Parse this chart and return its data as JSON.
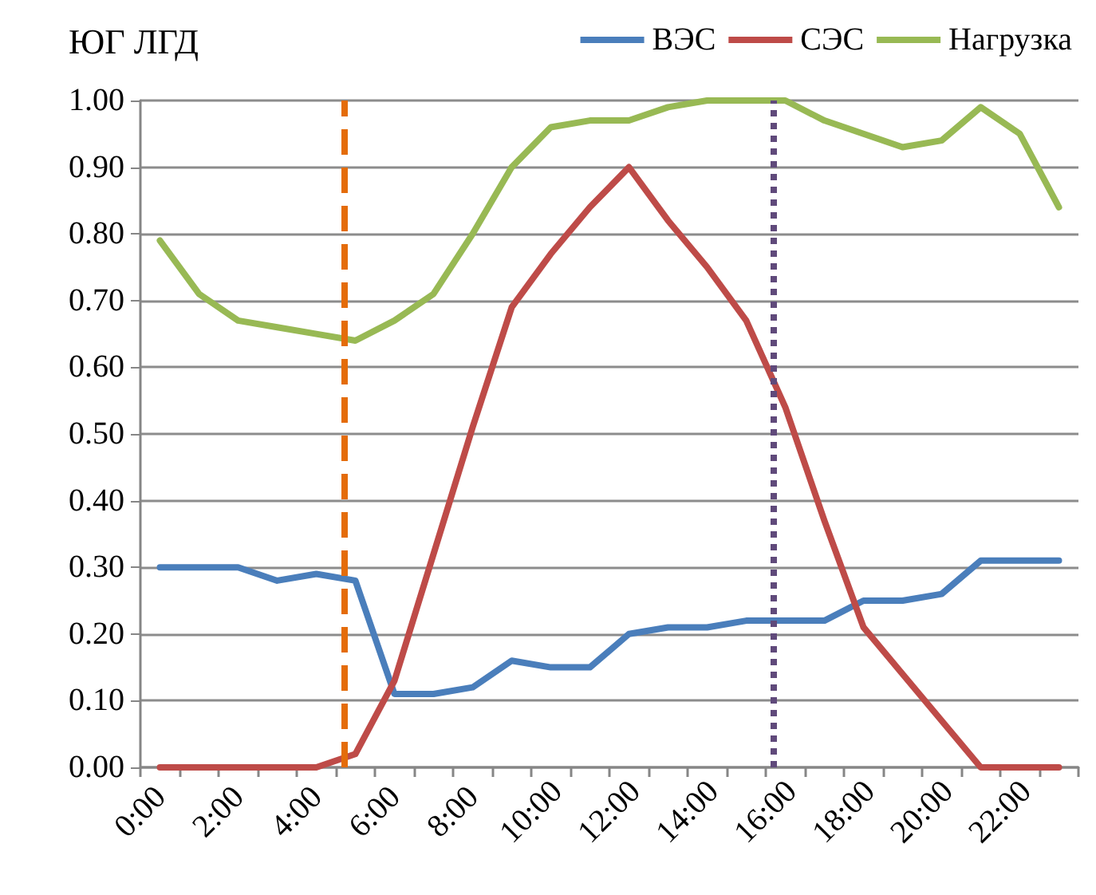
{
  "chart_data": {
    "type": "line",
    "title": "ЮГ ЛГД",
    "x": [
      0.5,
      1.5,
      2.5,
      3.5,
      4.5,
      5.5,
      6.5,
      7.5,
      8.5,
      9.5,
      10.5,
      11.5,
      12.5,
      13.5,
      14.5,
      15.5,
      16.5,
      17.5,
      18.5,
      19.5,
      20.5,
      21.5,
      22.5,
      23.5
    ],
    "xlim": [
      0,
      24
    ],
    "xticks": [
      {
        "value": 0,
        "label": "0:00"
      },
      {
        "value": 2,
        "label": "2:00"
      },
      {
        "value": 4,
        "label": "4:00"
      },
      {
        "value": 6,
        "label": "6:00"
      },
      {
        "value": 8,
        "label": "8:00"
      },
      {
        "value": 10,
        "label": "10:00"
      },
      {
        "value": 12,
        "label": "12:00"
      },
      {
        "value": 14,
        "label": "14:00"
      },
      {
        "value": 16,
        "label": "16:00"
      },
      {
        "value": 18,
        "label": "18:00"
      },
      {
        "value": 20,
        "label": "20:00"
      },
      {
        "value": 22,
        "label": "22:00"
      },
      {
        "value": 1,
        "label": null
      },
      {
        "value": 3,
        "label": null
      },
      {
        "value": 5,
        "label": null
      },
      {
        "value": 7,
        "label": null
      },
      {
        "value": 9,
        "label": null
      },
      {
        "value": 11,
        "label": null
      },
      {
        "value": 13,
        "label": null
      },
      {
        "value": 15,
        "label": null
      },
      {
        "value": 17,
        "label": null
      },
      {
        "value": 19,
        "label": null
      },
      {
        "value": 21,
        "label": null
      },
      {
        "value": 23,
        "label": null
      },
      {
        "value": 24,
        "label": null
      }
    ],
    "ylim": [
      0,
      1
    ],
    "yticks": [
      {
        "value": 0,
        "label": "0.00"
      },
      {
        "value": 0.1,
        "label": "0.10"
      },
      {
        "value": 0.2,
        "label": "0.20"
      },
      {
        "value": 0.3,
        "label": "0.30"
      },
      {
        "value": 0.4,
        "label": "0.40"
      },
      {
        "value": 0.5,
        "label": "0.50"
      },
      {
        "value": 0.6,
        "label": "0.60"
      },
      {
        "value": 0.7,
        "label": "0.70"
      },
      {
        "value": 0.8,
        "label": "0.80"
      },
      {
        "value": 0.9,
        "label": "0.90"
      },
      {
        "value": 1,
        "label": "1.00"
      }
    ],
    "series": [
      {
        "name": "ВЭС",
        "color": "#4a7ebb",
        "values": [
          0.3,
          0.3,
          0.3,
          0.28,
          0.29,
          0.28,
          0.11,
          0.11,
          0.12,
          0.16,
          0.15,
          0.15,
          0.2,
          0.21,
          0.21,
          0.22,
          0.22,
          0.22,
          0.25,
          0.25,
          0.26,
          0.31,
          0.31,
          0.31
        ]
      },
      {
        "name": "СЭС",
        "color": "#be4b48",
        "values": [
          0,
          0,
          0,
          0,
          0,
          0.02,
          0.13,
          0.32,
          0.51,
          0.69,
          0.77,
          0.84,
          0.9,
          0.82,
          0.75,
          0.67,
          0.54,
          0.37,
          0.21,
          0.14,
          0.07,
          0,
          0,
          0
        ]
      },
      {
        "name": "Нагрузка",
        "color": "#98b954",
        "values": [
          0.79,
          0.71,
          0.67,
          0.66,
          0.65,
          0.64,
          0.67,
          0.71,
          0.8,
          0.9,
          0.96,
          0.97,
          0.97,
          0.99,
          1.0,
          1.0,
          1.0,
          0.97,
          0.95,
          0.93,
          0.94,
          0.99,
          0.95,
          0.84
        ]
      }
    ],
    "ref_lines": [
      {
        "axis": "x",
        "value": 5.2,
        "color": "#e46c0a",
        "line_style": "dashed"
      },
      {
        "axis": "x",
        "value": 16.2,
        "color": "#604a7b",
        "line_style": "dotted"
      }
    ],
    "grid": "y",
    "legend": "top right",
    "marker": "none",
    "line_style": "solid"
  }
}
